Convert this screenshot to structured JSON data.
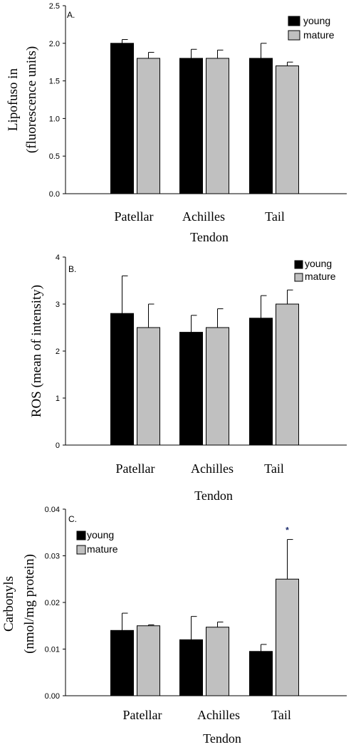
{
  "chart_data": [
    {
      "type": "bar",
      "panel_label": "A.",
      "categories": [
        "Patellar",
        "Achilles",
        "Tail"
      ],
      "xlabel": "Tendon",
      "ylabel": [
        "Lipofuso in",
        "(fluorescence units)"
      ],
      "ylim": [
        0,
        2.5
      ],
      "yticks": [
        "0.0",
        "0.5",
        "1.0",
        "1.5",
        "2.0",
        "2.5"
      ],
      "legend": {
        "position": "top-right",
        "entries": [
          "young",
          "mature"
        ]
      },
      "series": [
        {
          "name": "young",
          "color": "#000000",
          "values": [
            2.0,
            1.8,
            1.8
          ],
          "errors": [
            0.05,
            0.12,
            0.2
          ]
        },
        {
          "name": "mature",
          "color": "#c0c0c0",
          "values": [
            1.8,
            1.8,
            1.7
          ],
          "errors": [
            0.08,
            0.11,
            0.05
          ]
        }
      ],
      "annotations": []
    },
    {
      "type": "bar",
      "panel_label": "B.",
      "categories": [
        "Patellar",
        "Achilles",
        "Tail"
      ],
      "xlabel": "Tendon",
      "ylabel": [
        "ROS (mean of intensity)"
      ],
      "ylim": [
        0,
        4
      ],
      "yticks": [
        "0",
        "1",
        "2",
        "3",
        "4"
      ],
      "legend": {
        "position": "top-right",
        "entries": [
          "young",
          "mature"
        ]
      },
      "series": [
        {
          "name": "young",
          "color": "#000000",
          "values": [
            2.8,
            2.4,
            2.7
          ],
          "errors": [
            0.8,
            0.36,
            0.48
          ]
        },
        {
          "name": "mature",
          "color": "#c0c0c0",
          "values": [
            2.5,
            2.5,
            3.0
          ],
          "errors": [
            0.5,
            0.4,
            0.3
          ]
        }
      ],
      "annotations": []
    },
    {
      "type": "bar",
      "panel_label": "C.",
      "categories": [
        "Patellar",
        "Achilles",
        "Tail"
      ],
      "xlabel": "Tendon",
      "ylabel": [
        "Carbonyls",
        "(nmol/mg protein)"
      ],
      "ylim": [
        0,
        0.04
      ],
      "yticks": [
        "0.00",
        "0.01",
        "0.02",
        "0.03",
        "0.04"
      ],
      "legend": {
        "position": "top-left",
        "entries": [
          "young",
          "mature"
        ]
      },
      "series": [
        {
          "name": "young",
          "color": "#000000",
          "values": [
            0.014,
            0.012,
            0.0095
          ],
          "errors": [
            0.0037,
            0.005,
            0.0015
          ]
        },
        {
          "name": "mature",
          "color": "#c0c0c0",
          "values": [
            0.015,
            0.0147,
            0.025
          ],
          "errors": [
            0.0002,
            0.0011,
            0.0085
          ]
        }
      ],
      "annotations": [
        {
          "text": "*",
          "category": "Tail",
          "series": "mature"
        }
      ]
    }
  ]
}
